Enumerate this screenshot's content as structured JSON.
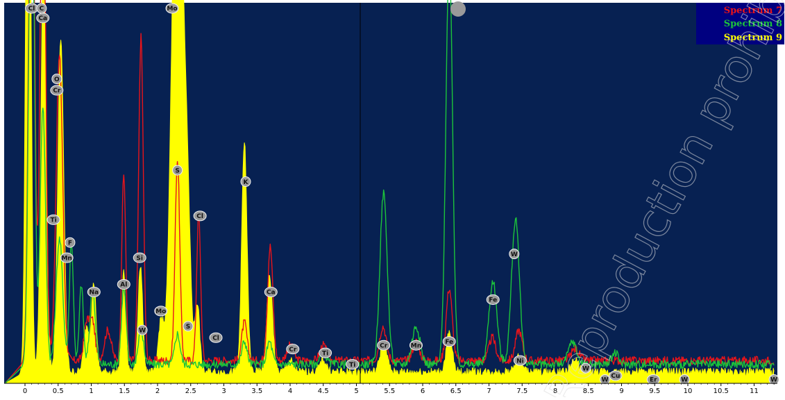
{
  "chart_data": {
    "type": "line",
    "x_range": [
      -0.3,
      11.3
    ],
    "y_range": [
      0,
      100
    ],
    "grid": false,
    "legend_position": "top-right",
    "x_ticks": [
      "0",
      "0.5",
      "1",
      "1.5",
      "2",
      "2.5",
      "3",
      "3.5",
      "4",
      "4.5",
      "5",
      "5.5",
      "6",
      "6.5",
      "7",
      "7.5",
      "8",
      "8.5",
      "9",
      "9.5",
      "10",
      "10.5",
      "11"
    ],
    "series": [
      {
        "name": "Spectrum 7",
        "color": "#e8141a",
        "fill": false,
        "baseline": 6,
        "peaks": [
          [
            0.1,
            180,
            0.04
          ],
          [
            0.27,
            150,
            0.04
          ],
          [
            0.52,
            80,
            0.05
          ],
          [
            0.93,
            10,
            0.04
          ],
          [
            1.02,
            10,
            0.04
          ],
          [
            1.25,
            8,
            0.05
          ],
          [
            1.49,
            49,
            0.03
          ],
          [
            1.75,
            85,
            0.035
          ],
          [
            2.3,
            53,
            0.035
          ],
          [
            2.62,
            38,
            0.03
          ],
          [
            3.31,
            10,
            0.04
          ],
          [
            3.7,
            30,
            0.04
          ],
          [
            4.0,
            4,
            0.05
          ],
          [
            4.5,
            4,
            0.05
          ],
          [
            5.4,
            9,
            0.05
          ],
          [
            5.9,
            5,
            0.05
          ],
          [
            6.4,
            19,
            0.045
          ],
          [
            7.05,
            6,
            0.05
          ],
          [
            7.45,
            8,
            0.05
          ],
          [
            8.3,
            3,
            0.06
          ]
        ]
      },
      {
        "name": "Spectrum 8",
        "color": "#1cc43b",
        "fill": false,
        "baseline": 5,
        "peaks": [
          [
            0.1,
            150,
            0.04
          ],
          [
            0.27,
            68,
            0.04
          ],
          [
            0.52,
            33,
            0.05
          ],
          [
            0.7,
            32,
            0.03
          ],
          [
            0.85,
            21,
            0.03
          ],
          [
            1.02,
            20,
            0.04
          ],
          [
            1.49,
            20,
            0.035
          ],
          [
            1.75,
            9,
            0.04
          ],
          [
            2.3,
            8,
            0.04
          ],
          [
            3.31,
            6,
            0.04
          ],
          [
            3.69,
            6,
            0.04
          ],
          [
            4.5,
            3,
            0.05
          ],
          [
            5.41,
            45,
            0.055
          ],
          [
            5.9,
            10,
            0.06
          ],
          [
            6.4,
            108,
            0.05
          ],
          [
            7.06,
            22,
            0.06
          ],
          [
            7.4,
            38,
            0.06
          ],
          [
            8.26,
            6,
            0.06
          ],
          [
            8.9,
            3,
            0.05
          ]
        ]
      },
      {
        "name": "Spectrum 9",
        "color": "#ffff00",
        "fill": true,
        "baseline": 3,
        "peaks": [
          [
            0.05,
            200,
            0.035
          ],
          [
            0.28,
            110,
            0.04
          ],
          [
            0.54,
            87,
            0.045
          ],
          [
            0.93,
            12,
            0.04
          ],
          [
            1.04,
            23,
            0.035
          ],
          [
            1.49,
            26,
            0.03
          ],
          [
            1.74,
            28,
            0.035
          ],
          [
            2.05,
            13,
            0.04
          ],
          [
            2.3,
            160,
            0.08
          ],
          [
            2.45,
            35,
            0.05
          ],
          [
            2.6,
            18,
            0.035
          ],
          [
            3.31,
            60,
            0.04
          ],
          [
            3.69,
            25,
            0.045
          ],
          [
            4.0,
            3,
            0.05
          ],
          [
            4.5,
            3,
            0.05
          ],
          [
            5.41,
            8,
            0.05
          ],
          [
            6.4,
            10,
            0.045
          ],
          [
            7.45,
            4,
            0.05
          ],
          [
            8.3,
            3,
            0.06
          ]
        ]
      }
    ],
    "element_labels": [
      {
        "text": "Cl",
        "x": 0.1,
        "y": 103
      },
      {
        "text": "C",
        "x": 0.25,
        "y": 99
      },
      {
        "text": "Ca",
        "x": 0.27,
        "y": 96
      },
      {
        "text": "Mo",
        "x": 2.22,
        "y": 103
      },
      {
        "text": "O",
        "x": 0.48,
        "y": 80
      },
      {
        "text": "Cr",
        "x": 0.48,
        "y": 77
      },
      {
        "text": "Ti",
        "x": 0.43,
        "y": 43
      },
      {
        "text": "F",
        "x": 0.68,
        "y": 37
      },
      {
        "text": "Mn",
        "x": 0.63,
        "y": 33
      },
      {
        "text": "Na",
        "x": 1.04,
        "y": 24
      },
      {
        "text": "Al",
        "x": 1.49,
        "y": 26
      },
      {
        "text": "Si",
        "x": 1.73,
        "y": 33
      },
      {
        "text": "W",
        "x": 1.77,
        "y": 14
      },
      {
        "text": "Mo",
        "x": 2.05,
        "y": 19
      },
      {
        "text": "S",
        "x": 2.3,
        "y": 56
      },
      {
        "text": "S",
        "x": 2.46,
        "y": 15
      },
      {
        "text": "Cl",
        "x": 2.64,
        "y": 44
      },
      {
        "text": "Cl",
        "x": 2.88,
        "y": 12
      },
      {
        "text": "K",
        "x": 3.33,
        "y": 53
      },
      {
        "text": "Ca",
        "x": 3.71,
        "y": 24
      },
      {
        "text": "Cr",
        "x": 4.04,
        "y": 9
      },
      {
        "text": "Ti",
        "x": 4.53,
        "y": 8
      },
      {
        "text": "Ti",
        "x": 4.94,
        "y": 5
      },
      {
        "text": "Cr",
        "x": 5.41,
        "y": 10
      },
      {
        "text": "Mn",
        "x": 5.9,
        "y": 10
      },
      {
        "text": "Fe",
        "x": 6.4,
        "y": 11
      },
      {
        "text": "Fe",
        "x": 7.06,
        "y": 22
      },
      {
        "text": "W",
        "x": 7.38,
        "y": 34
      },
      {
        "text": "Ni",
        "x": 7.47,
        "y": 6
      },
      {
        "text": "W",
        "x": 8.46,
        "y": 4
      },
      {
        "text": "W",
        "x": 8.75,
        "y": 1
      },
      {
        "text": "Cu",
        "x": 8.91,
        "y": 2
      },
      {
        "text": "Er",
        "x": 9.48,
        "y": 1
      },
      {
        "text": "W",
        "x": 9.95,
        "y": 1
      },
      {
        "text": "W",
        "x": 11.3,
        "y": 1
      }
    ]
  },
  "legend": [
    {
      "label": "Spectrum 7",
      "color": "#e8141a"
    },
    {
      "label": "Spectrum 8",
      "color": "#1cc43b"
    },
    {
      "label": "Spectrum 9",
      "color": "#ffff00"
    }
  ],
  "watermark": "Reproduction prohibited"
}
